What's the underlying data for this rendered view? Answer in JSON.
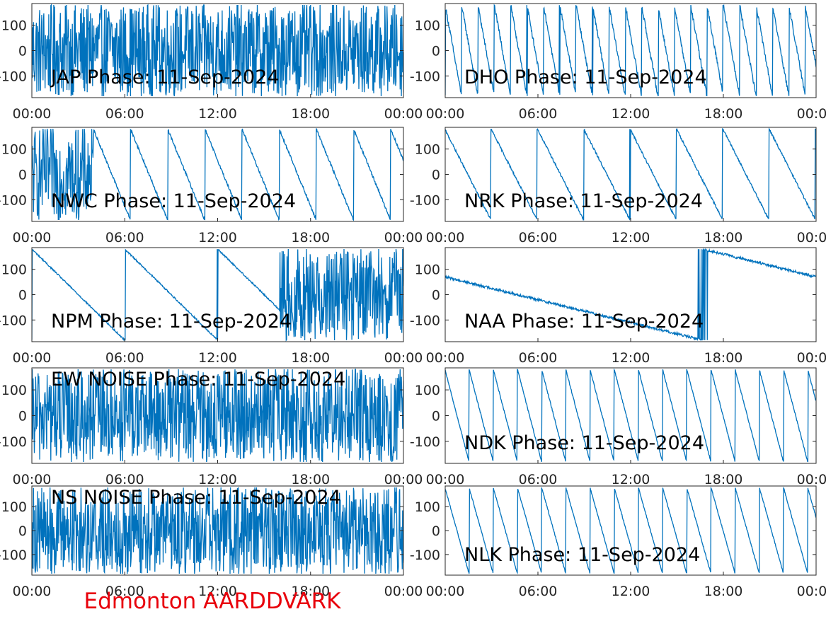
{
  "footer": "Edmonton AARDDVARK",
  "colors": {
    "trace": "#0072bd",
    "axes": "#262626",
    "footer": "#e8000b"
  },
  "chart_data": [
    {
      "type": "line",
      "title": "JAP Phase: 11-Sep-2024",
      "pattern": "noise",
      "xticks": [
        "00:00",
        "06:00",
        "12:00",
        "18:00",
        "00:00"
      ],
      "yticks": [
        "100",
        "0",
        "-100"
      ],
      "ylim": [
        -180,
        180
      ],
      "xlim_hours": [
        0,
        24
      ]
    },
    {
      "type": "line",
      "title": "DHO Phase: 11-Sep-2024",
      "pattern": "dense-wrap",
      "xticks": [
        "00:00",
        "06:00",
        "12:00",
        "18:00",
        "00:00"
      ],
      "yticks": [
        "100",
        "0",
        "-100"
      ],
      "ylim": [
        -180,
        180
      ],
      "xlim_hours": [
        0,
        24
      ]
    },
    {
      "type": "line",
      "title": "NWC Phase: 11-Sep-2024",
      "pattern": "sawtooth-mixed",
      "xticks": [
        "00:00",
        "06:00",
        "12:00",
        "18:00",
        "00:00"
      ],
      "yticks": [
        "100",
        "0",
        "-100"
      ],
      "ylim": [
        -180,
        180
      ],
      "xlim_hours": [
        0,
        24
      ]
    },
    {
      "type": "line",
      "title": "NRK Phase: 11-Sep-2024",
      "pattern": "sawtooth",
      "xticks": [
        "00:00",
        "06:00",
        "12:00",
        "18:00",
        "00:00"
      ],
      "yticks": [
        "100",
        "0",
        "-100"
      ],
      "ylim": [
        -180,
        180
      ],
      "xlim_hours": [
        0,
        24
      ]
    },
    {
      "type": "line",
      "title": "NPM Phase: 11-Sep-2024",
      "pattern": "slow-then-noise",
      "xticks": [
        "00:00",
        "06:00",
        "12:00",
        "18:00",
        "00:00"
      ],
      "yticks": [
        "100",
        "0",
        "-100"
      ],
      "ylim": [
        -180,
        180
      ],
      "xlim_hours": [
        0,
        24
      ]
    },
    {
      "type": "line",
      "title": "NAA Phase: 11-Sep-2024",
      "pattern": "slow",
      "xticks": [
        "00:00",
        "06:00",
        "12:00",
        "18:00",
        "00:00"
      ],
      "yticks": [
        "100",
        "0",
        "-100"
      ],
      "ylim": [
        -180,
        180
      ],
      "xlim_hours": [
        0,
        24
      ]
    },
    {
      "type": "line",
      "title": "EW NOISE Phase: 11-Sep-2024",
      "pattern": "noise",
      "xticks": [
        "00:00",
        "06:00",
        "12:00",
        "18:00",
        "00:00"
      ],
      "yticks": [
        "100",
        "0",
        "-100"
      ],
      "ylim": [
        -180,
        180
      ],
      "xlim_hours": [
        0,
        24
      ]
    },
    {
      "type": "line",
      "title": "NDK Phase: 11-Sep-2024",
      "pattern": "sawtooth-fast",
      "xticks": [
        "00:00",
        "06:00",
        "12:00",
        "18:00",
        "00:00"
      ],
      "yticks": [
        "100",
        "0",
        "-100"
      ],
      "ylim": [
        -180,
        180
      ],
      "xlim_hours": [
        0,
        24
      ]
    },
    {
      "type": "line",
      "title": "NS NOISE Phase: 11-Sep-2024",
      "pattern": "noise",
      "xticks": [
        "00:00",
        "06:00",
        "12:00",
        "18:00",
        "00:00"
      ],
      "yticks": [
        "100",
        "0",
        "-100"
      ],
      "ylim": [
        -180,
        180
      ],
      "xlim_hours": [
        0,
        24
      ]
    },
    {
      "type": "line",
      "title": "NLK Phase: 11-Sep-2024",
      "pattern": "sawtooth-fast",
      "xticks": [
        "00:00",
        "06:00",
        "12:00",
        "18:00",
        "00:00"
      ],
      "yticks": [
        "100",
        "0",
        "-100"
      ],
      "ylim": [
        -180,
        180
      ],
      "xlim_hours": [
        0,
        24
      ]
    }
  ]
}
